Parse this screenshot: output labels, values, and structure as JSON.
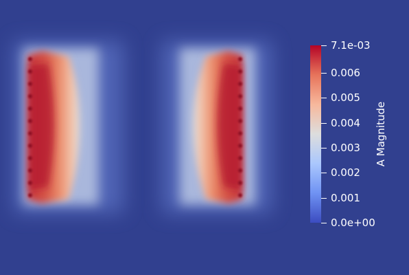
{
  "viewport": {
    "background_color": "#31408f",
    "field_name": "A Magnitude"
  },
  "colorbar": {
    "title": "A Magnitude",
    "colormap": "Cool to Warm",
    "colors": [
      "#3b4cc0",
      "#6f92f3",
      "#aac7fd",
      "#dddddd",
      "#f7b89c",
      "#e7745b",
      "#b40426"
    ],
    "range": [
      0.0,
      0.0071
    ],
    "ticks": [
      {
        "value": 0.0071,
        "label": "7.1e-03"
      },
      {
        "value": 0.006,
        "label": "0.006"
      },
      {
        "value": 0.005,
        "label": "0.005"
      },
      {
        "value": 0.004,
        "label": "0.004"
      },
      {
        "value": 0.003,
        "label": "0.003"
      },
      {
        "value": 0.002,
        "label": "0.002"
      },
      {
        "value": 0.001,
        "label": "0.001"
      },
      {
        "value": 0.0,
        "label": "0.0e+00"
      }
    ]
  }
}
